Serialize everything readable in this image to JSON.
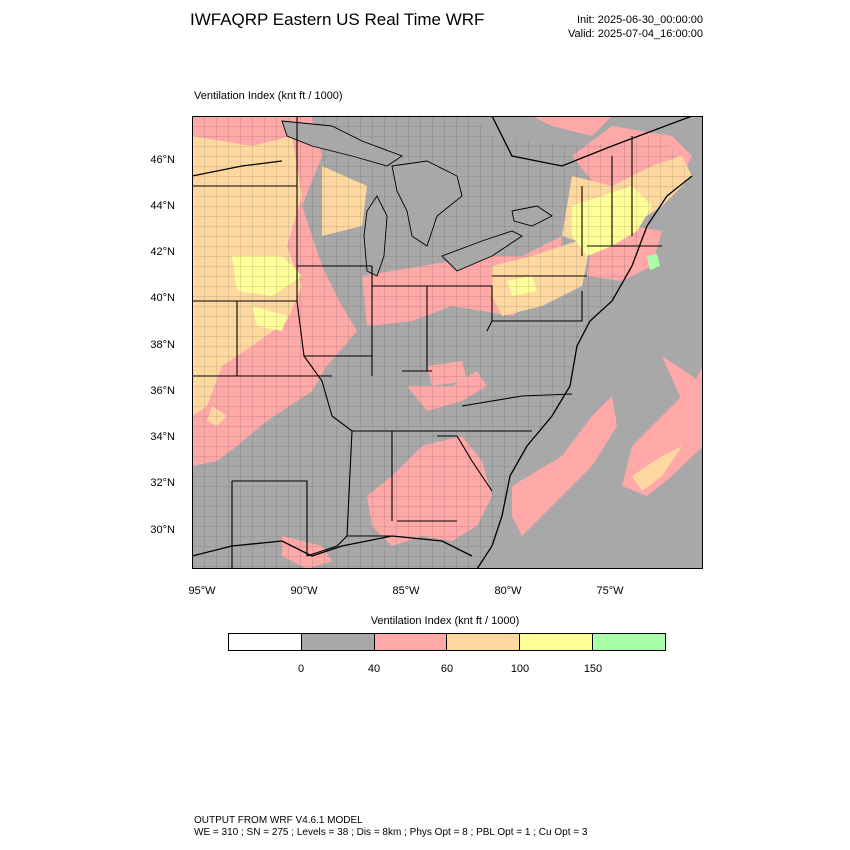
{
  "header": {
    "title": "IWFAQRP Eastern US Real Time WRF",
    "init": "Init: 2025-06-30_00:00:00",
    "valid": "Valid: 2025-07-04_16:00:00"
  },
  "map": {
    "field_label": "Ventilation Index   (knt ft / 1000)",
    "lat_labels": [
      "46°N",
      "44°N",
      "42°N",
      "40°N",
      "38°N",
      "36°N",
      "34°N",
      "32°N",
      "30°N"
    ],
    "lon_labels": [
      "95°W",
      "90°W",
      "85°W",
      "80°W",
      "75°W"
    ],
    "background_color": "#a8a8a8"
  },
  "colorbar": {
    "title": "Ventilation Index  (knt ft / 1000)",
    "colors": [
      "#ffffff",
      "#a8a8a8",
      "#ffa8a8",
      "#ffd8a0",
      "#ffff98",
      "#a8ffa8"
    ],
    "ticks": [
      "0",
      "40",
      "60",
      "100",
      "150"
    ]
  },
  "footer": {
    "line1": "OUTPUT FROM WRF V4.6.1 MODEL",
    "line2": "WE = 310 ; SN = 275 ; Levels = 38 ; Dis = 8km ; Phys Opt = 8 ; PBL Opt = 1 ; Cu Opt = 3"
  }
}
